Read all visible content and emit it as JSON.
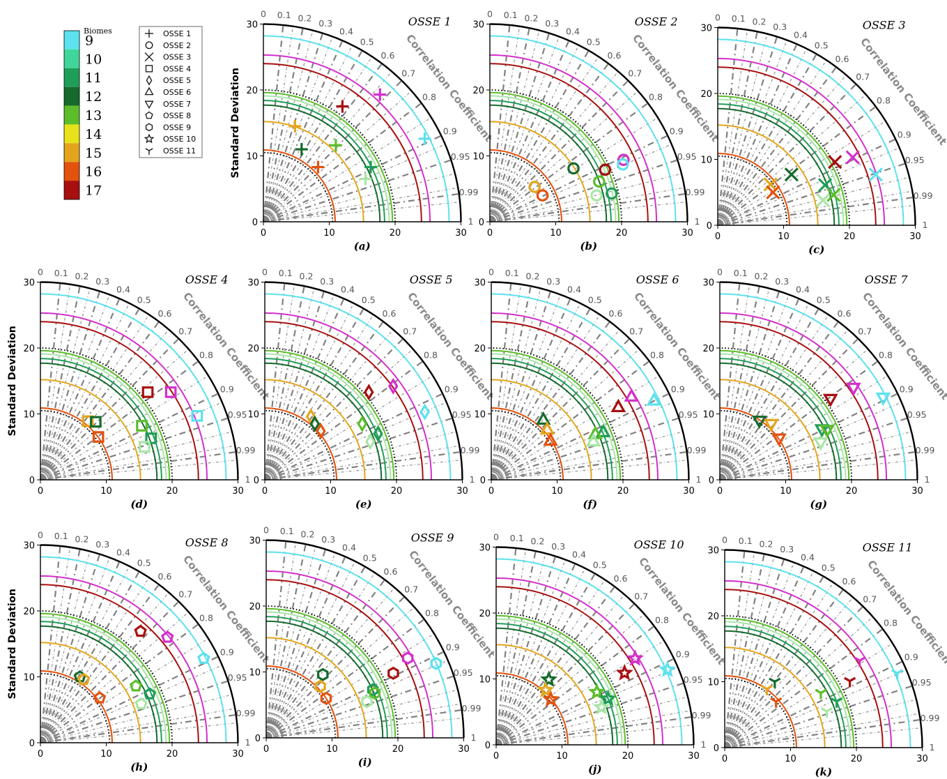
{
  "colorbar": {
    "title": "Biomes",
    "labels": [
      "9",
      "10",
      "11",
      "12",
      "13",
      "14",
      "15",
      "16",
      "17"
    ],
    "colors": [
      "#5ce1ee",
      "#41d699",
      "#1f9e5a",
      "#156a2c",
      "#5cbd2a",
      "#e8e21a",
      "#e3a51c",
      "#e3520e",
      "#a80f0f"
    ]
  },
  "marker_legend": [
    {
      "label": "OSSE 1",
      "icon": "plus-icon"
    },
    {
      "label": "OSSE 2",
      "icon": "circle-icon"
    },
    {
      "label": "OSSE 3",
      "icon": "x-icon"
    },
    {
      "label": "OSSE 4",
      "icon": "square-icon"
    },
    {
      "label": "OSSE 5",
      "icon": "diamond-icon"
    },
    {
      "label": "OSSE 6",
      "icon": "triangle-up-icon"
    },
    {
      "label": "OSSE 7",
      "icon": "triangle-down-icon"
    },
    {
      "label": "OSSE 8",
      "icon": "pentagon-icon"
    },
    {
      "label": "OSSE 9",
      "icon": "hexagon-icon"
    },
    {
      "label": "OSSE 10",
      "icon": "star-icon"
    },
    {
      "label": "OSSE 11",
      "icon": "tri-down-icon"
    }
  ],
  "shared": {
    "axis_ticks": [
      "0",
      "10",
      "20",
      "30"
    ],
    "ylabel": "Standard Deviation",
    "corr_label": "Correlation Coefficient",
    "corr_ticks": [
      "0",
      "0.1",
      "0.2",
      "0.3",
      "0.4",
      "0.5",
      "0.6",
      "0.7",
      "0.8",
      "0.9",
      "0.95",
      "0.99",
      "1"
    ],
    "ref_std": 10.5,
    "max_std": 30,
    "biome_ref_std": {
      "9": 28.2,
      "10": 19.1,
      "11": 18.4,
      "12": 17.7,
      "13": 19.6,
      "14": 16.3,
      "15": 15.2,
      "16": 10.9,
      "17": 24.0,
      "magenta": 25.3
    },
    "dotted_arcs": [
      10.5,
      20.0
    ]
  },
  "chart_data": [
    {
      "title": "OSSE 1",
      "caption": "(a)",
      "type": "scatter",
      "marker": "plus",
      "xlim": [
        0,
        30
      ],
      "ylim": [
        0,
        30
      ],
      "points": [
        {
          "biome": "9",
          "x": 24.5,
          "y": 12.6
        },
        {
          "biome": "magenta",
          "x": 17.7,
          "y": 19.3
        },
        {
          "biome": "17",
          "x": 12.0,
          "y": 17.5
        },
        {
          "biome": "15",
          "x": 4.8,
          "y": 14.5
        },
        {
          "biome": "12",
          "x": 5.8,
          "y": 11.0
        },
        {
          "biome": "13",
          "x": 11.0,
          "y": 11.6
        },
        {
          "biome": "16",
          "x": 8.3,
          "y": 8.3
        },
        {
          "biome": "11",
          "x": 16.3,
          "y": 8.3
        },
        {
          "biome": "10",
          "x": 15.5,
          "y": 6.5
        }
      ]
    },
    {
      "title": "OSSE 2",
      "caption": "(b)",
      "type": "scatter",
      "marker": "circle",
      "xlim": [
        0,
        30
      ],
      "ylim": [
        0,
        30
      ],
      "points": [
        {
          "biome": "magenta",
          "x": 20.3,
          "y": 9.4
        },
        {
          "biome": "9",
          "x": 20.2,
          "y": 8.7
        },
        {
          "biome": "17",
          "x": 17.5,
          "y": 7.9
        },
        {
          "biome": "12",
          "x": 12.7,
          "y": 8.1
        },
        {
          "biome": "13",
          "x": 16.6,
          "y": 6.1
        },
        {
          "biome": "10",
          "x": 16.2,
          "y": 4.0
        },
        {
          "biome": "11",
          "x": 18.5,
          "y": 4.3
        },
        {
          "biome": "15",
          "x": 6.8,
          "y": 5.3
        },
        {
          "biome": "16",
          "x": 8.0,
          "y": 4.0
        }
      ]
    },
    {
      "title": "OSSE 3",
      "caption": "(c)",
      "type": "scatter",
      "marker": "x",
      "xlim": [
        0,
        30
      ],
      "ylim": [
        0,
        30
      ],
      "points": [
        {
          "biome": "magenta",
          "x": 20.5,
          "y": 10.3
        },
        {
          "biome": "17",
          "x": 17.8,
          "y": 9.6
        },
        {
          "biome": "9",
          "x": 24.0,
          "y": 7.7
        },
        {
          "biome": "12",
          "x": 11.2,
          "y": 7.7
        },
        {
          "biome": "15",
          "x": 8.0,
          "y": 6.2
        },
        {
          "biome": "16",
          "x": 8.4,
          "y": 5.0
        },
        {
          "biome": "11",
          "x": 16.3,
          "y": 6.1
        },
        {
          "biome": "13",
          "x": 17.6,
          "y": 4.6
        },
        {
          "biome": "10",
          "x": 16.0,
          "y": 3.8
        }
      ]
    },
    {
      "title": "OSSE 4",
      "caption": "(d)",
      "type": "scatter",
      "marker": "square",
      "xlim": [
        0,
        30
      ],
      "ylim": [
        0,
        30
      ],
      "points": [
        {
          "biome": "17",
          "x": 16.3,
          "y": 13.3
        },
        {
          "biome": "magenta",
          "x": 19.8,
          "y": 13.3
        },
        {
          "biome": "9",
          "x": 23.8,
          "y": 9.7
        },
        {
          "biome": "15",
          "x": 7.2,
          "y": 8.9
        },
        {
          "biome": "12",
          "x": 8.4,
          "y": 8.8
        },
        {
          "biome": "16",
          "x": 8.8,
          "y": 6.5
        },
        {
          "biome": "13",
          "x": 15.4,
          "y": 8.2
        },
        {
          "biome": "11",
          "x": 16.8,
          "y": 6.3
        },
        {
          "biome": "10",
          "x": 15.8,
          "y": 5.0
        }
      ]
    },
    {
      "title": "OSSE 5",
      "caption": "(e)",
      "type": "scatter",
      "marker": "diamond",
      "xlim": [
        0,
        30
      ],
      "ylim": [
        0,
        30
      ],
      "points": [
        {
          "biome": "17",
          "x": 15.8,
          "y": 13.3
        },
        {
          "biome": "magenta",
          "x": 19.5,
          "y": 14.2
        },
        {
          "biome": "9",
          "x": 24.3,
          "y": 10.3
        },
        {
          "biome": "15",
          "x": 7.0,
          "y": 9.6
        },
        {
          "biome": "12",
          "x": 7.6,
          "y": 8.5
        },
        {
          "biome": "16",
          "x": 8.5,
          "y": 7.4
        },
        {
          "biome": "13",
          "x": 14.8,
          "y": 8.5
        },
        {
          "biome": "11",
          "x": 17.2,
          "y": 7.0
        },
        {
          "biome": "10",
          "x": 16.0,
          "y": 5.8
        }
      ]
    },
    {
      "title": "OSSE 6",
      "caption": "(f)",
      "type": "scatter",
      "marker": "triangle-up",
      "xlim": [
        0,
        30
      ],
      "ylim": [
        0,
        30
      ],
      "points": [
        {
          "biome": "magenta",
          "x": 21.3,
          "y": 12.6
        },
        {
          "biome": "9",
          "x": 24.7,
          "y": 12.0
        },
        {
          "biome": "17",
          "x": 19.3,
          "y": 11.0
        },
        {
          "biome": "12",
          "x": 7.9,
          "y": 9.1
        },
        {
          "biome": "15",
          "x": 8.5,
          "y": 7.6
        },
        {
          "biome": "16",
          "x": 9.0,
          "y": 5.9
        },
        {
          "biome": "11",
          "x": 17.0,
          "y": 7.2
        },
        {
          "biome": "13",
          "x": 15.8,
          "y": 6.9
        },
        {
          "biome": "10",
          "x": 15.5,
          "y": 5.8
        }
      ]
    },
    {
      "title": "OSSE 7",
      "caption": "(g)",
      "type": "scatter",
      "marker": "triangle-down",
      "xlim": [
        0,
        30
      ],
      "ylim": [
        0,
        30
      ],
      "points": [
        {
          "biome": "magenta",
          "x": 20.3,
          "y": 14.0
        },
        {
          "biome": "9",
          "x": 24.8,
          "y": 12.5
        },
        {
          "biome": "17",
          "x": 16.8,
          "y": 12.3
        },
        {
          "biome": "12",
          "x": 6.0,
          "y": 9.0
        },
        {
          "biome": "15",
          "x": 7.8,
          "y": 8.5
        },
        {
          "biome": "16",
          "x": 9.0,
          "y": 6.3
        },
        {
          "biome": "11",
          "x": 15.5,
          "y": 7.7
        },
        {
          "biome": "13",
          "x": 16.3,
          "y": 7.6
        },
        {
          "biome": "10",
          "x": 15.3,
          "y": 5.7
        }
      ]
    },
    {
      "title": "OSSE 8",
      "caption": "(h)",
      "type": "scatter",
      "marker": "pentagon",
      "xlim": [
        0,
        30
      ],
      "ylim": [
        0,
        30
      ],
      "points": [
        {
          "biome": "17",
          "x": 15.2,
          "y": 16.9
        },
        {
          "biome": "magenta",
          "x": 19.3,
          "y": 16.0
        },
        {
          "biome": "9",
          "x": 24.8,
          "y": 12.8
        },
        {
          "biome": "12",
          "x": 6.0,
          "y": 10.0
        },
        {
          "biome": "15",
          "x": 6.6,
          "y": 9.6
        },
        {
          "biome": "16",
          "x": 9.0,
          "y": 6.8
        },
        {
          "biome": "13",
          "x": 14.5,
          "y": 8.6
        },
        {
          "biome": "11",
          "x": 16.6,
          "y": 7.4
        },
        {
          "biome": "10",
          "x": 15.3,
          "y": 5.9
        }
      ]
    },
    {
      "title": "OSSE 9",
      "caption": "(i)",
      "type": "scatter",
      "marker": "hexagon",
      "xlim": [
        0,
        30
      ],
      "ylim": [
        0,
        30
      ],
      "points": [
        {
          "biome": "magenta",
          "x": 21.5,
          "y": 12.1
        },
        {
          "biome": "9",
          "x": 25.8,
          "y": 11.3
        },
        {
          "biome": "17",
          "x": 19.3,
          "y": 9.8
        },
        {
          "biome": "12",
          "x": 8.6,
          "y": 9.6
        },
        {
          "biome": "15",
          "x": 8.2,
          "y": 7.8
        },
        {
          "biome": "16",
          "x": 9.1,
          "y": 6.0
        },
        {
          "biome": "11",
          "x": 16.2,
          "y": 7.3
        },
        {
          "biome": "13",
          "x": 16.5,
          "y": 6.8
        },
        {
          "biome": "10",
          "x": 15.3,
          "y": 5.5
        }
      ]
    },
    {
      "title": "OSSE 10",
      "caption": "(j)",
      "type": "scatter",
      "marker": "star",
      "xlim": [
        0,
        30
      ],
      "ylim": [
        0,
        30
      ],
      "points": [
        {
          "biome": "magenta",
          "x": 21.1,
          "y": 13.1
        },
        {
          "biome": "9",
          "x": 26.0,
          "y": 11.4
        },
        {
          "biome": "17",
          "x": 19.5,
          "y": 10.9
        },
        {
          "biome": "12",
          "x": 8.0,
          "y": 9.9
        },
        {
          "biome": "15",
          "x": 7.5,
          "y": 8.3
        },
        {
          "biome": "16",
          "x": 8.3,
          "y": 6.9
        },
        {
          "biome": "13",
          "x": 15.3,
          "y": 8.0
        },
        {
          "biome": "11",
          "x": 17.0,
          "y": 7.0
        },
        {
          "biome": "10",
          "x": 16.0,
          "y": 5.7
        }
      ]
    },
    {
      "title": "OSSE 11",
      "caption": "(k)",
      "type": "scatter",
      "marker": "tri-down",
      "xlim": [
        0,
        30
      ],
      "ylim": [
        0,
        30
      ],
      "points": [
        {
          "biome": "magenta",
          "x": 20.5,
          "y": 13.2
        },
        {
          "biome": "9",
          "x": 26.2,
          "y": 11.3
        },
        {
          "biome": "17",
          "x": 19.0,
          "y": 10.1
        },
        {
          "biome": "12",
          "x": 7.6,
          "y": 10.0
        },
        {
          "biome": "15",
          "x": 6.4,
          "y": 8.9
        },
        {
          "biome": "16",
          "x": 7.8,
          "y": 7.0
        },
        {
          "biome": "13",
          "x": 14.6,
          "y": 8.3
        },
        {
          "biome": "11",
          "x": 17.0,
          "y": 7.0
        },
        {
          "biome": "10",
          "x": 15.5,
          "y": 5.5
        }
      ]
    }
  ]
}
